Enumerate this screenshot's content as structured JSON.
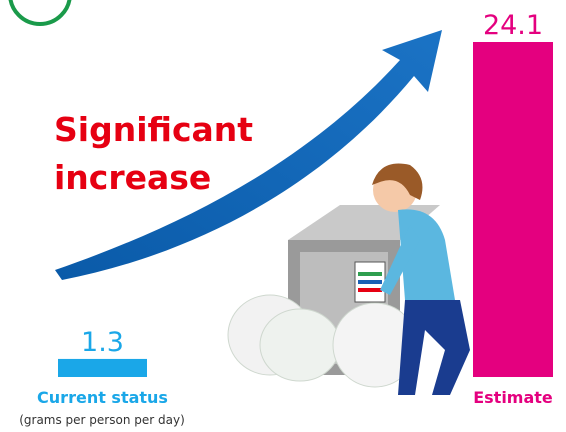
{
  "chart_data": {
    "type": "bar",
    "categories": [
      "Current status",
      "Estimate"
    ],
    "values": [
      1.3,
      24.1
    ],
    "colors": [
      "#1aa7e8",
      "#e4007f"
    ],
    "unit_label": "(grams per person per day)",
    "annotation": "Significant increase"
  }
}
